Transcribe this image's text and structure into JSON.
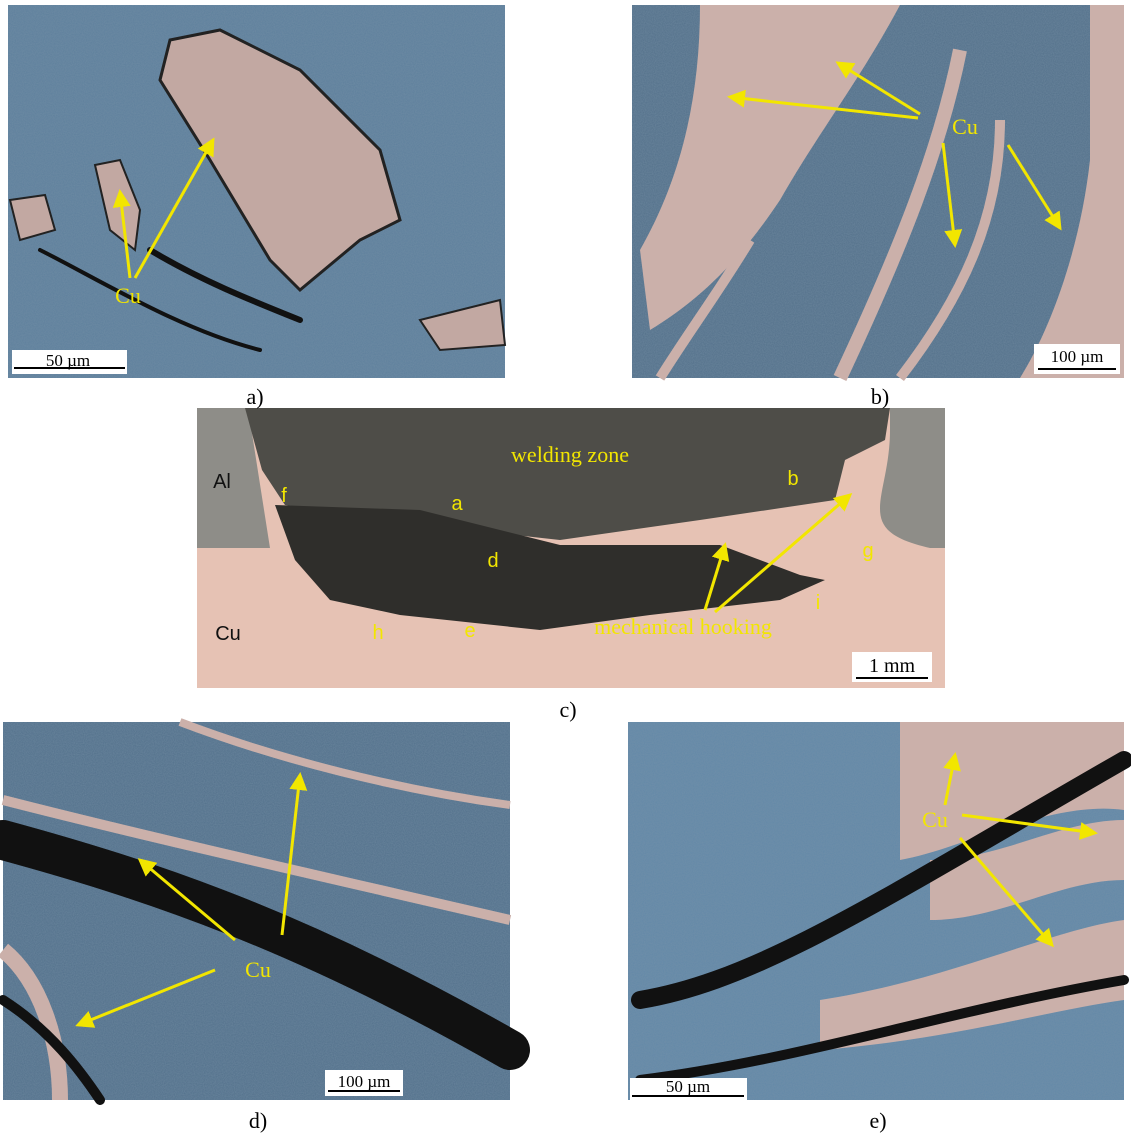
{
  "figure": {
    "panels": [
      {
        "caption": "a)",
        "scale_bar": "50 µm",
        "labels": [
          "Cu"
        ]
      },
      {
        "caption": "b)",
        "scale_bar": "100 µm",
        "labels": [
          "Cu"
        ]
      },
      {
        "caption": "c)",
        "scale_bar": "1 mm",
        "labels": [
          "Al",
          "Cu",
          "welding zone",
          "a",
          "b",
          "d",
          "e",
          "f",
          "g",
          "h",
          "i",
          "mechanical hooking"
        ]
      },
      {
        "caption": "d)",
        "scale_bar": "100 µm",
        "labels": [
          "Cu"
        ]
      },
      {
        "caption": "e)",
        "scale_bar": "50 µm",
        "labels": [
          "Cu"
        ]
      }
    ]
  }
}
